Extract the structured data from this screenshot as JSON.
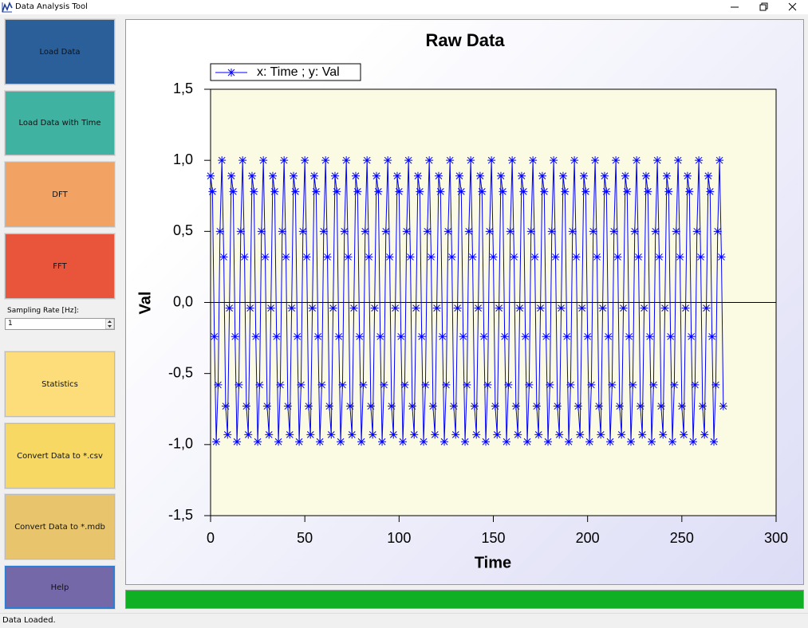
{
  "window": {
    "title": "Data Analysis Tool"
  },
  "sidebar": {
    "buttons": [
      "Load Data",
      "Load Data with Time",
      "DFT",
      "FFT",
      "Statistics",
      "Convert Data to *.csv",
      "Convert Data to *.mdb",
      "Help"
    ],
    "sampling_rate_label": "Sampling Rate [Hz]:",
    "sampling_rate_value": "1"
  },
  "status": "Data Loaded.",
  "chart_data": {
    "type": "line",
    "title": "Raw Data",
    "xlabel": "Time",
    "ylabel": "Val",
    "xlim": [
      0,
      300
    ],
    "ylim": [
      -1.5,
      1.5
    ],
    "xticks": [
      0,
      50,
      100,
      150,
      200,
      250,
      300
    ],
    "yticks": [
      {
        "value": 1.5,
        "label": "1,5"
      },
      {
        "value": 1,
        "label": "1,0"
      },
      {
        "value": 0.5,
        "label": "0,5"
      },
      {
        "value": 0,
        "label": "0,0"
      },
      {
        "value": -0.5,
        "label": "-0,5"
      },
      {
        "value": -1,
        "label": "-1,0"
      },
      {
        "value": -1.5,
        "label": "-1,5"
      }
    ],
    "x": [
      0,
      1,
      2,
      3,
      4,
      5,
      6,
      7,
      8,
      9,
      10,
      11,
      12,
      13,
      14,
      15,
      16,
      17,
      18,
      19,
      20,
      21,
      22,
      23,
      24,
      25,
      26,
      27,
      28,
      29,
      30,
      31,
      32,
      33,
      34,
      35,
      36,
      37,
      38,
      39,
      40,
      41,
      42,
      43,
      44,
      45,
      46,
      47,
      48,
      49,
      50,
      51,
      52,
      53,
      54,
      55,
      56,
      57,
      58,
      59,
      60,
      61,
      62,
      63,
      64,
      65,
      66,
      67,
      68,
      69,
      70,
      71,
      72,
      73,
      74,
      75,
      76,
      77,
      78,
      79,
      80,
      81,
      82,
      83,
      84,
      85,
      86,
      87,
      88,
      89,
      90,
      91,
      92,
      93,
      94,
      95,
      96,
      97,
      98,
      99,
      100,
      101,
      102,
      103,
      104,
      105,
      106,
      107,
      108,
      109,
      110,
      111,
      112,
      113,
      114,
      115,
      116,
      117,
      118,
      119,
      120,
      121,
      122,
      123,
      124,
      125,
      126,
      127,
      128,
      129,
      130,
      131,
      132,
      133,
      134,
      135,
      136,
      137,
      138,
      139,
      140,
      141,
      142,
      143,
      144,
      145,
      146,
      147,
      148,
      149,
      150,
      151,
      152,
      153,
      154,
      155,
      156,
      157,
      158,
      159,
      160,
      161,
      162,
      163,
      164,
      165,
      166,
      167,
      168,
      169,
      170,
      171,
      172,
      173,
      174,
      175,
      176,
      177,
      178,
      179,
      180,
      181,
      182,
      183,
      184,
      185,
      186,
      187,
      188,
      189,
      190,
      191,
      192,
      193,
      194,
      195,
      196,
      197,
      198,
      199,
      200,
      201,
      202,
      203,
      204,
      205,
      206,
      207,
      208,
      209,
      210,
      211,
      212,
      213,
      214,
      215,
      216,
      217,
      218,
      219,
      220,
      221,
      222,
      223,
      224,
      225,
      226,
      227,
      228,
      229,
      230,
      231,
      232,
      233,
      234,
      235,
      236,
      237,
      238,
      239,
      240,
      241,
      242,
      243,
      244,
      245,
      246,
      247,
      248,
      249,
      250,
      251,
      252,
      253,
      254,
      255,
      256,
      257,
      258,
      259,
      260,
      261,
      262,
      263,
      264,
      265,
      266,
      267,
      268,
      269,
      270,
      271,
      272
    ],
    "series": [
      {
        "name": "x: Time ; y: Val",
        "color": "#0000ff",
        "marker": "asterisk",
        "values": [
          0.89,
          0.78,
          -0.24,
          -0.98,
          -0.58,
          0.5,
          1,
          0.32,
          -0.73,
          -0.93,
          -0.04,
          0.89,
          0.78,
          -0.24,
          -0.98,
          -0.58,
          0.5,
          1,
          0.32,
          -0.73,
          -0.93,
          -0.04,
          0.89,
          0.78,
          -0.24,
          -0.98,
          -0.58,
          0.5,
          1,
          0.32,
          -0.73,
          -0.93,
          -0.04,
          0.89,
          0.78,
          -0.24,
          -0.98,
          -0.58,
          0.5,
          1,
          0.32,
          -0.73,
          -0.93,
          -0.04,
          0.89,
          0.78,
          -0.24,
          -0.98,
          -0.58,
          0.5,
          1,
          0.32,
          -0.73,
          -0.93,
          -0.04,
          0.89,
          0.78,
          -0.24,
          -0.98,
          -0.58,
          0.5,
          1,
          0.32,
          -0.73,
          -0.93,
          -0.04,
          0.89,
          0.78,
          -0.24,
          -0.98,
          -0.58,
          0.5,
          1,
          0.32,
          -0.73,
          -0.93,
          -0.04,
          0.89,
          0.78,
          -0.24,
          -0.98,
          -0.58,
          0.5,
          1,
          0.32,
          -0.73,
          -0.93,
          -0.04,
          0.89,
          0.78,
          -0.24,
          -0.98,
          -0.58,
          0.5,
          1,
          0.32,
          -0.73,
          -0.93,
          -0.04,
          0.89,
          0.78,
          -0.24,
          -0.98,
          -0.58,
          0.5,
          1,
          0.32,
          -0.73,
          -0.93,
          -0.04,
          0.89,
          0.78,
          -0.24,
          -0.98,
          -0.58,
          0.5,
          1,
          0.32,
          -0.73,
          -0.93,
          -0.04,
          0.89,
          0.78,
          -0.24,
          -0.98,
          -0.58,
          0.5,
          1,
          0.32,
          -0.73,
          -0.93,
          -0.04,
          0.89,
          0.78,
          -0.24,
          -0.98,
          -0.58,
          0.5,
          1,
          0.32,
          -0.73,
          -0.93,
          -0.04,
          0.89,
          0.78,
          -0.24,
          -0.98,
          -0.58,
          0.5,
          1,
          0.32,
          -0.73,
          -0.93,
          -0.04,
          0.89,
          0.78,
          -0.24,
          -0.98,
          -0.58,
          0.5,
          1,
          0.32,
          -0.73,
          -0.93,
          -0.04,
          0.89,
          0.78,
          -0.24,
          -0.98,
          -0.58,
          0.5,
          1,
          0.32,
          -0.73,
          -0.93,
          -0.04,
          0.89,
          0.78,
          -0.24,
          -0.98,
          -0.58,
          0.5,
          1,
          0.32,
          -0.73,
          -0.93,
          -0.04,
          0.89,
          0.78,
          -0.24,
          -0.98,
          -0.58,
          0.5,
          1,
          0.32,
          -0.73,
          -0.93,
          -0.04,
          0.89,
          0.78,
          -0.24,
          -0.98,
          -0.58,
          0.5,
          1,
          0.32,
          -0.73,
          -0.93,
          -0.04,
          0.89,
          0.78,
          -0.24,
          -0.98,
          -0.58,
          0.5,
          1,
          0.32,
          -0.73,
          -0.93,
          -0.04,
          0.89,
          0.78,
          -0.24,
          -0.98,
          -0.58,
          0.5,
          1,
          0.32,
          -0.73,
          -0.93,
          -0.04,
          0.89,
          0.78,
          -0.24,
          -0.98,
          -0.58,
          0.5,
          1,
          0.32,
          -0.73,
          -0.93,
          -0.04,
          0.89,
          0.78,
          -0.24,
          -0.98,
          -0.58,
          0.5,
          1,
          0.32,
          -0.73,
          -0.93,
          -0.04,
          0.89,
          0.78,
          -0.24,
          -0.98,
          -0.58,
          0.5,
          1,
          0.32,
          -0.73,
          -0.93,
          -0.04,
          0.89,
          0.78,
          -0.24,
          -0.98,
          -0.58,
          0.5,
          1,
          0.32,
          -0.73
        ]
      }
    ]
  }
}
